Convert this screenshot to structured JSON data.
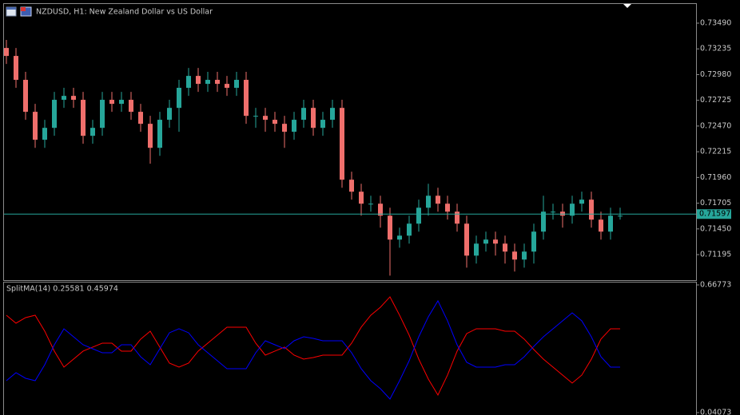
{
  "chart_data": [
    {
      "type": "candlestick",
      "title": "NZDUSD, H1:  New Zealand Dollar vs US Dollar",
      "open": [
        0.73244,
        0.73165,
        0.72928,
        0.72611,
        0.72334,
        0.72452,
        0.7273,
        0.72769,
        0.7273,
        0.72373,
        0.72452,
        0.7273,
        0.7269,
        0.7273,
        0.72611,
        0.72492,
        0.72254,
        0.72532,
        0.7265,
        0.72849,
        0.72967,
        0.72888,
        0.72928,
        0.72888,
        0.72849,
        0.72928,
        0.72571,
        0.72571,
        0.72532,
        0.72492,
        0.72413,
        0.72532,
        0.7265,
        0.72452,
        0.72532,
        0.7265,
        0.71938,
        0.71819,
        0.717,
        0.717,
        0.71581,
        0.71344,
        0.71383,
        0.71502,
        0.7166,
        0.71779,
        0.717,
        0.71621,
        0.71502,
        0.71185,
        0.71304,
        0.71344,
        0.71304,
        0.71225,
        0.71146,
        0.71225,
        0.71423,
        0.71621,
        0.71621,
        0.71581,
        0.717,
        0.7174,
        0.71542,
        0.71423,
        0.71581
      ],
      "high": [
        0.73324,
        0.73244,
        0.73007,
        0.7269,
        0.72532,
        0.72809,
        0.72849,
        0.72849,
        0.72809,
        0.72532,
        0.72809,
        0.72809,
        0.72809,
        0.72809,
        0.7269,
        0.72571,
        0.72611,
        0.7273,
        0.72928,
        0.73046,
        0.73046,
        0.73007,
        0.73007,
        0.72967,
        0.73007,
        0.73007,
        0.7265,
        0.7265,
        0.72611,
        0.72571,
        0.72611,
        0.7273,
        0.7273,
        0.72611,
        0.7273,
        0.7273,
        0.72017,
        0.71898,
        0.71779,
        0.71779,
        0.7166,
        0.71462,
        0.71581,
        0.7174,
        0.71898,
        0.71858,
        0.71779,
        0.717,
        0.71581,
        0.71383,
        0.71423,
        0.71423,
        0.71383,
        0.71304,
        0.71304,
        0.71502,
        0.71779,
        0.717,
        0.717,
        0.71779,
        0.71819,
        0.71819,
        0.71621,
        0.7166,
        0.7166
      ],
      "low": [
        0.73086,
        0.72849,
        0.72532,
        0.72254,
        0.72254,
        0.72373,
        0.7265,
        0.7265,
        0.72294,
        0.72294,
        0.72373,
        0.72611,
        0.72611,
        0.72532,
        0.72413,
        0.72096,
        0.72175,
        0.72452,
        0.72413,
        0.72769,
        0.72809,
        0.72809,
        0.72809,
        0.72769,
        0.72769,
        0.72492,
        0.72452,
        0.72413,
        0.72413,
        0.72254,
        0.72334,
        0.72452,
        0.72373,
        0.72373,
        0.72452,
        0.71858,
        0.7174,
        0.71581,
        0.71621,
        0.71462,
        0.70987,
        0.71264,
        0.71304,
        0.71423,
        0.71581,
        0.71621,
        0.71542,
        0.71423,
        0.71066,
        0.71106,
        0.71225,
        0.71185,
        0.71106,
        0.71027,
        0.71066,
        0.71106,
        0.71344,
        0.71542,
        0.71462,
        0.71502,
        0.71621,
        0.71462,
        0.71344,
        0.71344,
        0.71542
      ],
      "close": [
        0.73165,
        0.72928,
        0.72611,
        0.72334,
        0.72452,
        0.7273,
        0.72769,
        0.7273,
        0.72373,
        0.72452,
        0.7273,
        0.7269,
        0.7273,
        0.72611,
        0.72492,
        0.72254,
        0.72532,
        0.7265,
        0.72849,
        0.72967,
        0.72888,
        0.72928,
        0.72888,
        0.72849,
        0.72928,
        0.72571,
        0.72571,
        0.72532,
        0.72492,
        0.72413,
        0.72532,
        0.7265,
        0.72452,
        0.72532,
        0.7265,
        0.71938,
        0.71819,
        0.717,
        0.717,
        0.71581,
        0.71344,
        0.71383,
        0.71502,
        0.7166,
        0.71779,
        0.717,
        0.71621,
        0.71502,
        0.71185,
        0.71304,
        0.71344,
        0.71304,
        0.71225,
        0.71146,
        0.71225,
        0.71423,
        0.71621,
        0.71621,
        0.71581,
        0.717,
        0.7174,
        0.71542,
        0.71423,
        0.71581,
        0.71581
      ],
      "up_color": "#26a69a",
      "down_color": "#ef6f6c",
      "ylim": [
        0.7095,
        0.7368
      ],
      "yticks": [
        {
          "value": 0.7349,
          "label": "0.73490"
        },
        {
          "value": 0.73235,
          "label": "0.73235"
        },
        {
          "value": 0.7298,
          "label": "0.72980"
        },
        {
          "value": 0.72725,
          "label": "0.72725"
        },
        {
          "value": 0.7247,
          "label": "0.72470"
        },
        {
          "value": 0.72215,
          "label": "0.72215"
        },
        {
          "value": 0.7196,
          "label": "0.71960"
        },
        {
          "value": 0.71705,
          "label": "0.71705"
        },
        {
          "value": 0.7145,
          "label": "0.71450"
        },
        {
          "value": 0.71195,
          "label": "0.71195"
        }
      ],
      "current_price": 0.71597,
      "current_price_color": "#26a69a"
    },
    {
      "type": "line",
      "title": "SplitMA(14) 0.25581 0.45974",
      "series": [
        {
          "color": "#ff0000",
          "values": [
            0.519,
            0.4798,
            0.5072,
            0.519,
            0.4406,
            0.3426,
            0.2642,
            0.3034,
            0.3426,
            0.3622,
            0.3818,
            0.3818,
            0.3426,
            0.3426,
            0.4014,
            0.4406,
            0.3622,
            0.2838,
            0.2642,
            0.2838,
            0.3426,
            0.3818,
            0.421,
            0.4602,
            0.4602,
            0.4602,
            0.3818,
            0.323,
            0.3426,
            0.3622,
            0.323,
            0.3034,
            0.3112,
            0.323,
            0.323,
            0.323,
            0.3818,
            0.4602,
            0.519,
            0.5582,
            0.6091,
            0.519,
            0.421,
            0.3034,
            0.2054,
            0.127,
            0.225,
            0.3426,
            0.4288,
            0.4523,
            0.4523,
            0.4523,
            0.4406,
            0.4406,
            0.4014,
            0.3504,
            0.3034,
            0.2642,
            0.225,
            0.1858,
            0.225,
            0.3034,
            0.4014,
            0.4523,
            0.4523
          ]
        },
        {
          "color": "#0000ff",
          "values": [
            0.1975,
            0.2367,
            0.2093,
            0.1975,
            0.2759,
            0.3739,
            0.4523,
            0.4131,
            0.3739,
            0.3543,
            0.3347,
            0.3347,
            0.3739,
            0.3739,
            0.3151,
            0.2759,
            0.3543,
            0.4327,
            0.4523,
            0.4327,
            0.3739,
            0.3347,
            0.2955,
            0.2563,
            0.2563,
            0.2563,
            0.3347,
            0.3935,
            0.3739,
            0.3543,
            0.3935,
            0.4131,
            0.4053,
            0.3935,
            0.3935,
            0.3935,
            0.3347,
            0.2563,
            0.1975,
            0.1583,
            0.1073,
            0.1975,
            0.2955,
            0.4131,
            0.5111,
            0.5895,
            0.4915,
            0.3739,
            0.2877,
            0.2641,
            0.2641,
            0.2641,
            0.2759,
            0.2759,
            0.3151,
            0.3661,
            0.4131,
            0.4523,
            0.4915,
            0.5307,
            0.4915,
            0.4131,
            0.3151,
            0.2641,
            0.2641
          ]
        }
      ],
      "ylim": [
        0.04073,
        0.66773
      ],
      "yticks": [
        {
          "value": 0.66773,
          "label": "0.66773"
        },
        {
          "value": 0.04073,
          "label": "0.04073"
        }
      ]
    }
  ]
}
